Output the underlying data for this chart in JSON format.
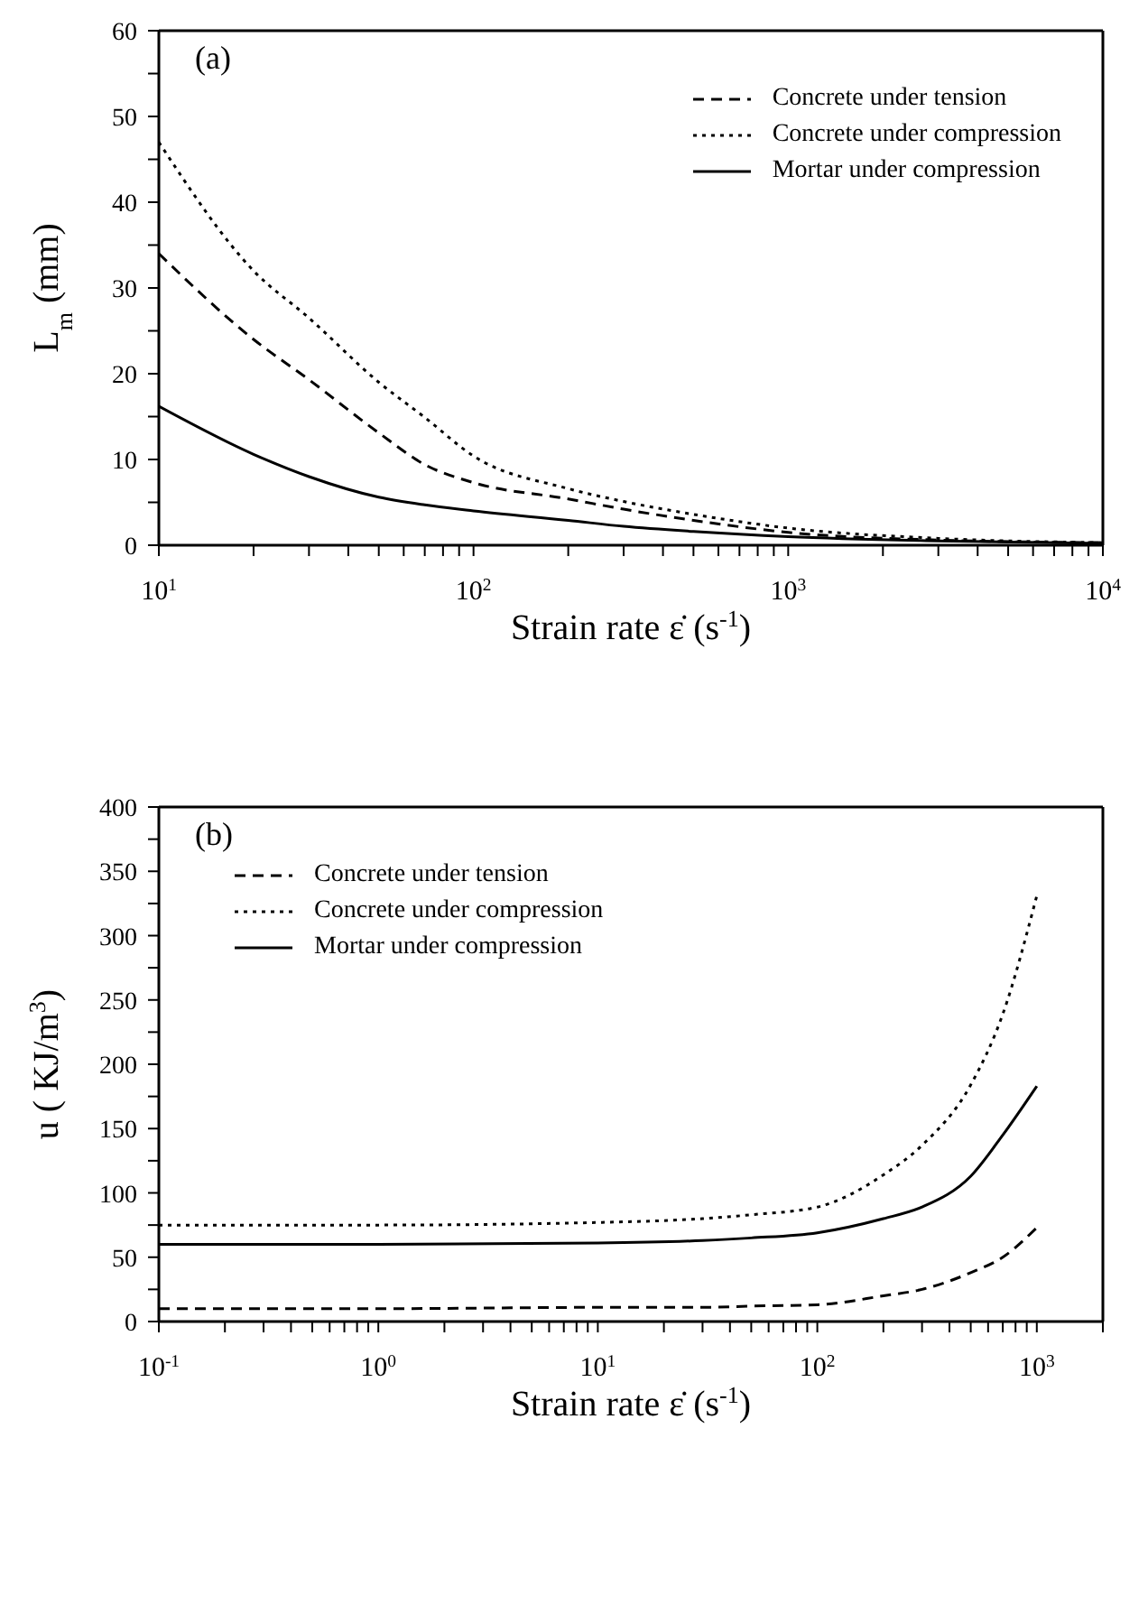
{
  "chart_data": [
    {
      "type": "line",
      "xlabel": "Strain rate ε̇ (s$^{-1}$)",
      "ylabel": "L$_{m}$ (mm)",
      "annotations": [
        "(a)"
      ],
      "log": "x",
      "grid": false,
      "legend": "top right",
      "marker": "none",
      "xlim": [
        10,
        10000
      ],
      "xticks": [
        {
          "value": 10,
          "label": "10$^{1}$"
        },
        {
          "value": 20,
          "label": null
        },
        {
          "value": 30,
          "label": null
        },
        {
          "value": 40,
          "label": null
        },
        {
          "value": 50,
          "label": null
        },
        {
          "value": 60,
          "label": null
        },
        {
          "value": 70,
          "label": null
        },
        {
          "value": 80,
          "label": null
        },
        {
          "value": 90,
          "label": null
        },
        {
          "value": 100,
          "label": "10$^{2}$"
        },
        {
          "value": 200,
          "label": null
        },
        {
          "value": 300,
          "label": null
        },
        {
          "value": 400,
          "label": null
        },
        {
          "value": 500,
          "label": null
        },
        {
          "value": 600,
          "label": null
        },
        {
          "value": 700,
          "label": null
        },
        {
          "value": 800,
          "label": null
        },
        {
          "value": 900,
          "label": null
        },
        {
          "value": 1000,
          "label": "10$^{3}$"
        },
        {
          "value": 2000,
          "label": null
        },
        {
          "value": 3000,
          "label": null
        },
        {
          "value": 4000,
          "label": null
        },
        {
          "value": 5000,
          "label": null
        },
        {
          "value": 6000,
          "label": null
        },
        {
          "value": 7000,
          "label": null
        },
        {
          "value": 8000,
          "label": null
        },
        {
          "value": 9000,
          "label": null
        },
        {
          "value": 10000,
          "label": "10$^{4}$"
        }
      ],
      "ylim": [
        0,
        60
      ],
      "yticks": [
        0,
        {
          "value": 5,
          "label": null
        },
        10,
        {
          "value": 15,
          "label": null
        },
        20,
        {
          "value": 25,
          "label": null
        },
        30,
        {
          "value": 35,
          "label": null
        },
        40,
        {
          "value": 45,
          "label": null
        },
        50,
        {
          "value": 55,
          "label": null
        },
        60
      ],
      "x": [
        10,
        20,
        30,
        50,
        70,
        100,
        200,
        300,
        500,
        1000,
        3000,
        10000
      ],
      "series": [
        {
          "name": "Concrete under tension",
          "color": "#000000",
          "line_style": "dashed",
          "values": [
            34,
            24,
            19.3,
            13.1,
            9.4,
            7.3,
            5.4,
            4.2,
            2.9,
            1.5,
            0.6,
            0.3
          ]
        },
        {
          "name": "Concrete under compression",
          "color": "#000000",
          "line_style": "dotted",
          "values": [
            47,
            32,
            26.5,
            19,
            14.9,
            10.4,
            6.6,
            5.1,
            3.6,
            2,
            0.8,
            0.3
          ]
        },
        {
          "name": "Mortar under compression",
          "color": "#000000",
          "line_style": "solid",
          "values": [
            16.2,
            10.6,
            8,
            5.6,
            4.7,
            4,
            2.9,
            2.2,
            1.6,
            1,
            0.5,
            0.2
          ]
        }
      ]
    },
    {
      "type": "line",
      "xlabel": "Strain rate ε̇ (s$^{-1}$)",
      "ylabel": "u ( KJ/m$^{3}$)",
      "annotations": [
        "(b)"
      ],
      "log": "x",
      "grid": false,
      "legend": "top left",
      "marker": "none",
      "xlim": [
        0.1,
        2000
      ],
      "xticks": [
        {
          "value": 0.1,
          "label": "10$^{-1}$"
        },
        {
          "value": 0.2,
          "label": null
        },
        {
          "value": 0.3,
          "label": null
        },
        {
          "value": 0.4,
          "label": null
        },
        {
          "value": 0.5,
          "label": null
        },
        {
          "value": 0.6,
          "label": null
        },
        {
          "value": 0.7,
          "label": null
        },
        {
          "value": 0.8,
          "label": null
        },
        {
          "value": 0.9,
          "label": null
        },
        {
          "value": 1,
          "label": "10$^{0}$"
        },
        {
          "value": 2,
          "label": null
        },
        {
          "value": 3,
          "label": null
        },
        {
          "value": 4,
          "label": null
        },
        {
          "value": 5,
          "label": null
        },
        {
          "value": 6,
          "label": null
        },
        {
          "value": 7,
          "label": null
        },
        {
          "value": 8,
          "label": null
        },
        {
          "value": 9,
          "label": null
        },
        {
          "value": 10,
          "label": "10$^{1}$"
        },
        {
          "value": 20,
          "label": null
        },
        {
          "value": 30,
          "label": null
        },
        {
          "value": 40,
          "label": null
        },
        {
          "value": 50,
          "label": null
        },
        {
          "value": 60,
          "label": null
        },
        {
          "value": 70,
          "label": null
        },
        {
          "value": 80,
          "label": null
        },
        {
          "value": 90,
          "label": null
        },
        {
          "value": 100,
          "label": "10$^{2}$"
        },
        {
          "value": 200,
          "label": null
        },
        {
          "value": 300,
          "label": null
        },
        {
          "value": 400,
          "label": null
        },
        {
          "value": 500,
          "label": null
        },
        {
          "value": 600,
          "label": null
        },
        {
          "value": 700,
          "label": null
        },
        {
          "value": 800,
          "label": null
        },
        {
          "value": 900,
          "label": null
        },
        {
          "value": 1000,
          "label": "10$^{3}$"
        },
        {
          "value": 2000,
          "label": null
        }
      ],
      "ylim": [
        0,
        400
      ],
      "yticks": [
        0,
        {
          "value": 25,
          "label": null
        },
        50,
        {
          "value": 75,
          "label": null
        },
        100,
        {
          "value": 125,
          "label": null
        },
        150,
        {
          "value": 175,
          "label": null
        },
        200,
        {
          "value": 225,
          "label": null
        },
        250,
        {
          "value": 275,
          "label": null
        },
        300,
        {
          "value": 325,
          "label": null
        },
        350,
        {
          "value": 375,
          "label": null
        },
        400
      ],
      "x": [
        0.1,
        1,
        10,
        30,
        50,
        100,
        200,
        300,
        500,
        700,
        1000
      ],
      "series": [
        {
          "name": "Concrete under tension",
          "color": "#000000",
          "line_style": "dashed",
          "values": [
            10,
            10,
            11,
            11,
            12,
            13,
            20,
            25,
            38,
            50,
            73
          ]
        },
        {
          "name": "Concrete under compression",
          "color": "#000000",
          "line_style": "dotted",
          "values": [
            75,
            75,
            77,
            80,
            83,
            89,
            114,
            137,
            184,
            239,
            331
          ]
        },
        {
          "name": "Mortar under compression",
          "color": "#000000",
          "line_style": "solid",
          "values": [
            60,
            60,
            61,
            63,
            65,
            69,
            80,
            89,
            113,
            145,
            183
          ]
        }
      ]
    }
  ]
}
